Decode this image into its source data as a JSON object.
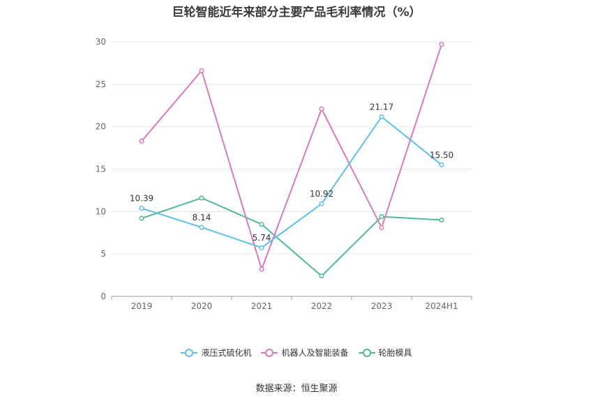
{
  "chart_data": {
    "type": "line",
    "title": "巨轮智能近年来部分主要产品毛利率情况（%）",
    "categories": [
      "2019",
      "2020",
      "2021",
      "2022",
      "2023",
      "2024H1"
    ],
    "ylim": [
      0,
      30
    ],
    "yticks": [
      0,
      5,
      10,
      15,
      20,
      25,
      30
    ],
    "grid": true,
    "legend_position": "bottom",
    "series": [
      {
        "name": "液压式硫化机",
        "color": "#5bc0eb",
        "values": [
          10.39,
          8.14,
          5.74,
          10.92,
          21.17,
          15.5
        ],
        "labels": [
          "10.39",
          "8.14",
          "5.74",
          "10.92",
          "21.17",
          "15.50"
        ]
      },
      {
        "name": "机器人及智能装备",
        "color": "#d97ab8",
        "values": [
          18.3,
          26.6,
          3.2,
          22.1,
          8.1,
          29.7
        ]
      },
      {
        "name": "轮胎模具",
        "color": "#4fb89a",
        "values": [
          9.2,
          11.6,
          8.5,
          2.4,
          9.4,
          9.0
        ]
      }
    ]
  },
  "source": "数据来源：恒生聚源"
}
